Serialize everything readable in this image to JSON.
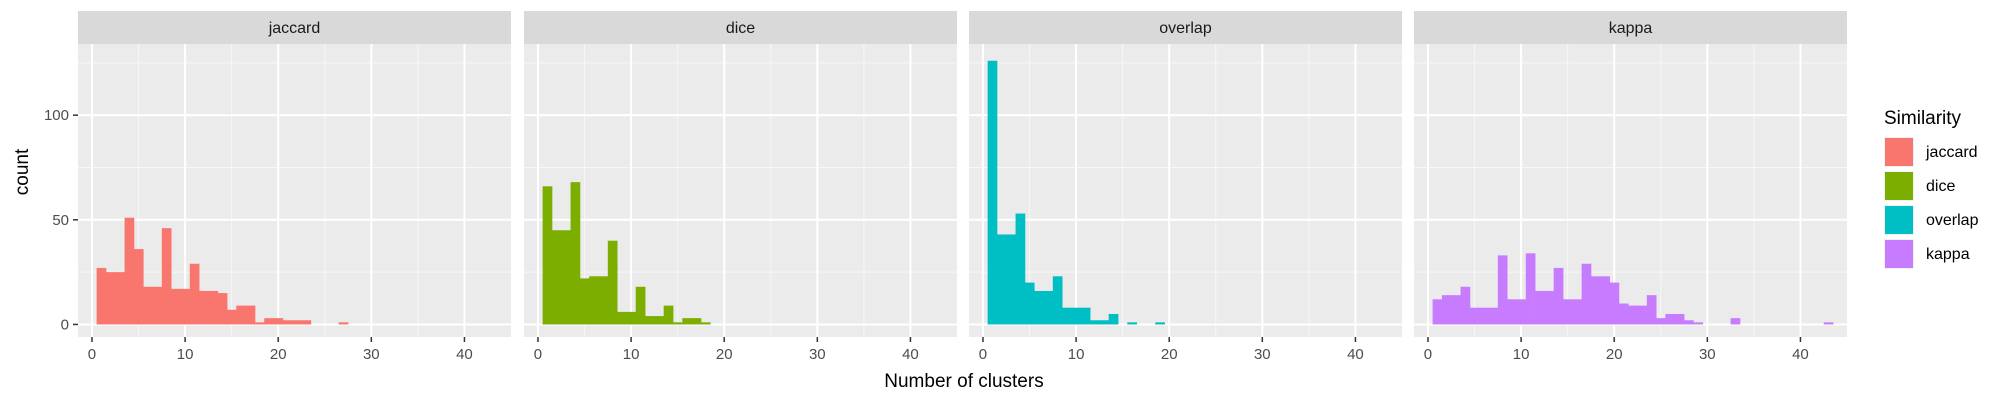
{
  "chart_data": {
    "type": "bar",
    "subtype": "faceted-histogram",
    "xlabel": "Number of clusters",
    "ylabel": "count",
    "x_ticks": [
      0,
      10,
      20,
      30,
      40
    ],
    "y_ticks": [
      0,
      50,
      100
    ],
    "xlim": [
      -1.5,
      45
    ],
    "ylim": [
      -6,
      134
    ],
    "binwidth": 1,
    "grid": true,
    "legend": {
      "title": "Similarity",
      "position": "right",
      "entries": [
        "jaccard",
        "dice",
        "overlap",
        "kappa"
      ]
    },
    "facets": [
      {
        "name": "jaccard",
        "color": "#F8766D",
        "bins": [
          {
            "x": 1,
            "count": 27
          },
          {
            "x": 2,
            "count": 25
          },
          {
            "x": 3,
            "count": 25
          },
          {
            "x": 4,
            "count": 51
          },
          {
            "x": 5,
            "count": 36
          },
          {
            "x": 6,
            "count": 18
          },
          {
            "x": 7,
            "count": 18
          },
          {
            "x": 8,
            "count": 46
          },
          {
            "x": 9,
            "count": 17
          },
          {
            "x": 10,
            "count": 17
          },
          {
            "x": 11,
            "count": 29
          },
          {
            "x": 12,
            "count": 16
          },
          {
            "x": 13,
            "count": 16
          },
          {
            "x": 14,
            "count": 15
          },
          {
            "x": 15,
            "count": 7
          },
          {
            "x": 16,
            "count": 9
          },
          {
            "x": 17,
            "count": 9
          },
          {
            "x": 18,
            "count": 1
          },
          {
            "x": 19,
            "count": 3
          },
          {
            "x": 20,
            "count": 3
          },
          {
            "x": 21,
            "count": 2
          },
          {
            "x": 22,
            "count": 2
          },
          {
            "x": 23,
            "count": 2
          },
          {
            "x": 27,
            "count": 1
          }
        ]
      },
      {
        "name": "dice",
        "color": "#7CAE00",
        "bins": [
          {
            "x": 1,
            "count": 66
          },
          {
            "x": 2,
            "count": 45
          },
          {
            "x": 3,
            "count": 45
          },
          {
            "x": 4,
            "count": 68
          },
          {
            "x": 5,
            "count": 22
          },
          {
            "x": 6,
            "count": 23
          },
          {
            "x": 7,
            "count": 23
          },
          {
            "x": 8,
            "count": 40
          },
          {
            "x": 9,
            "count": 6
          },
          {
            "x": 10,
            "count": 6
          },
          {
            "x": 11,
            "count": 18
          },
          {
            "x": 12,
            "count": 4
          },
          {
            "x": 13,
            "count": 4
          },
          {
            "x": 14,
            "count": 9
          },
          {
            "x": 15,
            "count": 1
          },
          {
            "x": 16,
            "count": 3
          },
          {
            "x": 17,
            "count": 3
          },
          {
            "x": 18,
            "count": 1
          }
        ]
      },
      {
        "name": "overlap",
        "color": "#00BFC4",
        "bins": [
          {
            "x": 1,
            "count": 126
          },
          {
            "x": 2,
            "count": 43
          },
          {
            "x": 3,
            "count": 43
          },
          {
            "x": 4,
            "count": 53
          },
          {
            "x": 5,
            "count": 20
          },
          {
            "x": 6,
            "count": 16
          },
          {
            "x": 7,
            "count": 16
          },
          {
            "x": 8,
            "count": 23
          },
          {
            "x": 9,
            "count": 8
          },
          {
            "x": 10,
            "count": 8
          },
          {
            "x": 11,
            "count": 8
          },
          {
            "x": 12,
            "count": 2
          },
          {
            "x": 13,
            "count": 2
          },
          {
            "x": 14,
            "count": 5
          },
          {
            "x": 16,
            "count": 1
          },
          {
            "x": 19,
            "count": 1
          }
        ]
      },
      {
        "name": "kappa",
        "color": "#C77CFF",
        "bins": [
          {
            "x": 1,
            "count": 12
          },
          {
            "x": 2,
            "count": 14
          },
          {
            "x": 3,
            "count": 14
          },
          {
            "x": 4,
            "count": 18
          },
          {
            "x": 5,
            "count": 8
          },
          {
            "x": 6,
            "count": 8
          },
          {
            "x": 7,
            "count": 8
          },
          {
            "x": 8,
            "count": 33
          },
          {
            "x": 9,
            "count": 12
          },
          {
            "x": 10,
            "count": 12
          },
          {
            "x": 11,
            "count": 34
          },
          {
            "x": 12,
            "count": 16
          },
          {
            "x": 13,
            "count": 16
          },
          {
            "x": 14,
            "count": 27
          },
          {
            "x": 15,
            "count": 12
          },
          {
            "x": 16,
            "count": 12
          },
          {
            "x": 17,
            "count": 29
          },
          {
            "x": 18,
            "count": 23
          },
          {
            "x": 19,
            "count": 23
          },
          {
            "x": 20,
            "count": 20
          },
          {
            "x": 21,
            "count": 10
          },
          {
            "x": 22,
            "count": 9
          },
          {
            "x": 23,
            "count": 9
          },
          {
            "x": 24,
            "count": 14
          },
          {
            "x": 25,
            "count": 3
          },
          {
            "x": 26,
            "count": 5
          },
          {
            "x": 27,
            "count": 5
          },
          {
            "x": 28,
            "count": 2
          },
          {
            "x": 29,
            "count": 1
          },
          {
            "x": 33,
            "count": 3
          },
          {
            "x": 43,
            "count": 1
          }
        ]
      }
    ]
  }
}
